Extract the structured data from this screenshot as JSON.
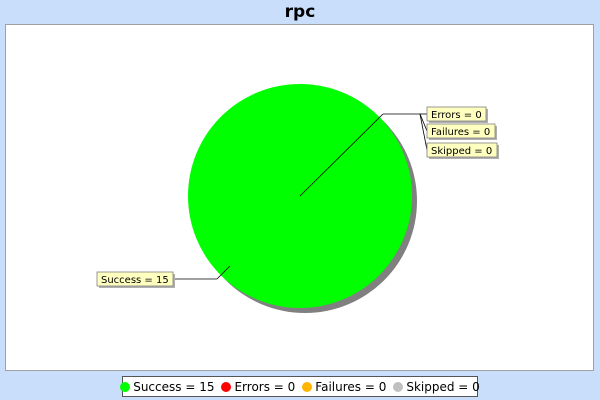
{
  "chart_data": {
    "type": "pie",
    "title": "rpc",
    "slices": [
      {
        "label": "Success",
        "value": 15,
        "color": "#00ff00",
        "callout": "Success = 15"
      },
      {
        "label": "Errors",
        "value": 0,
        "color": "#ff0000",
        "callout": "Errors = 0"
      },
      {
        "label": "Failures",
        "value": 0,
        "color": "#ffb400",
        "callout": "Failures = 0"
      },
      {
        "label": "Skipped",
        "value": 0,
        "color": "#c0c0c0",
        "callout": "Skipped = 0"
      }
    ],
    "legend_position": "bottom"
  },
  "legend": {
    "items": [
      {
        "text": "Success = 15",
        "color": "#00ff00"
      },
      {
        "text": "Errors = 0",
        "color": "#ff0000"
      },
      {
        "text": "Failures = 0",
        "color": "#ffb400"
      },
      {
        "text": "Skipped = 0",
        "color": "#c0c0c0"
      }
    ]
  }
}
